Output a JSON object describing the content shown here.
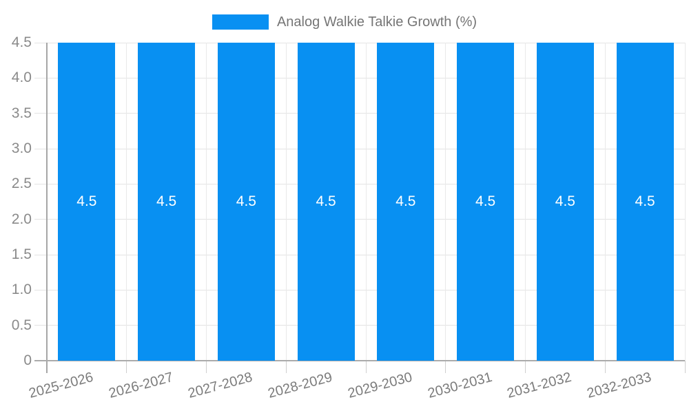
{
  "legend": {
    "label": "Analog Walkie Talkie Growth (%)",
    "swatch_color": "#0890F2"
  },
  "chart_data": {
    "type": "bar",
    "title": "Analog Walkie Talkie Growth (%)",
    "categories": [
      "2025-2026",
      "2026-2027",
      "2027-2028",
      "2028-2029",
      "2029-2030",
      "2030-2031",
      "2031-2032",
      "2032-2033"
    ],
    "series": [
      {
        "name": "Analog Walkie Talkie Growth (%)",
        "values": [
          4.5,
          4.5,
          4.5,
          4.5,
          4.5,
          4.5,
          4.5,
          4.5
        ],
        "color": "#0890F2"
      }
    ],
    "bar_labels": [
      "4.5",
      "4.5",
      "4.5",
      "4.5",
      "4.5",
      "4.5",
      "4.5",
      "4.5"
    ],
    "bar_label_color": "#FFFFFF",
    "xlabel": "",
    "ylabel": "",
    "ylim": [
      0,
      4.5
    ],
    "yticks": [
      0,
      0.5,
      1.0,
      1.5,
      2.0,
      2.5,
      3.0,
      3.5,
      4.0,
      4.5
    ],
    "ytick_labels": [
      "0",
      "0.5",
      "1.0",
      "1.5",
      "2.0",
      "2.5",
      "3.0",
      "3.5",
      "4.0",
      "4.5"
    ],
    "grid": true,
    "legend_position": "top-center",
    "x_label_rotation_deg": -15,
    "colors": {
      "bar": "#0890F2",
      "grid": "#E3E3E3",
      "axis": "#ABABAB",
      "tick_text": "#8A8A8A",
      "legend_text": "#757575"
    }
  }
}
